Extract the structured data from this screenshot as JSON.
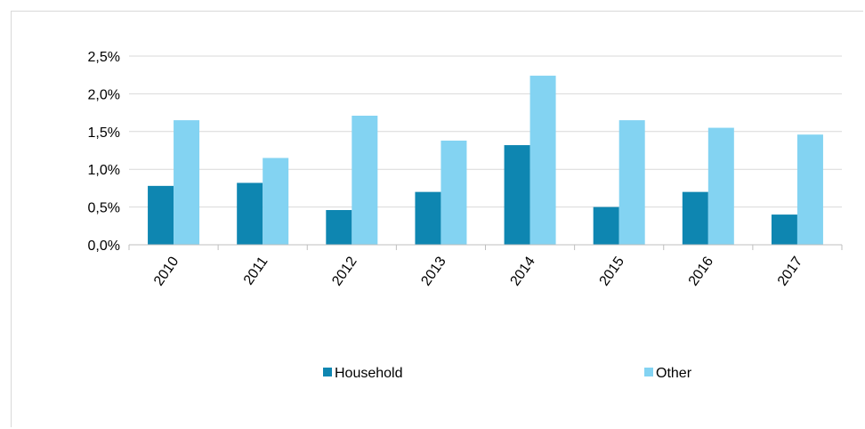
{
  "chart_data": {
    "type": "bar",
    "categories": [
      "2010",
      "2011",
      "2012",
      "2013",
      "2014",
      "2015",
      "2016",
      "2017"
    ],
    "series": [
      {
        "name": "Household",
        "color": "#0e86b1",
        "values": [
          0.78,
          0.82,
          0.46,
          0.7,
          1.32,
          0.5,
          0.7,
          0.4
        ]
      },
      {
        "name": "Other",
        "color": "#83d3f2",
        "values": [
          1.65,
          1.15,
          1.71,
          1.38,
          2.24,
          1.65,
          1.55,
          1.46
        ]
      }
    ],
    "y_ticks": [
      "0,0%",
      "0,5%",
      "1,0%",
      "1,5%",
      "2,0%",
      "2,5%"
    ],
    "ylim": [
      0,
      2.5
    ],
    "grid": true,
    "legend_position": "bottom",
    "title": "",
    "xlabel": "",
    "ylabel": ""
  }
}
